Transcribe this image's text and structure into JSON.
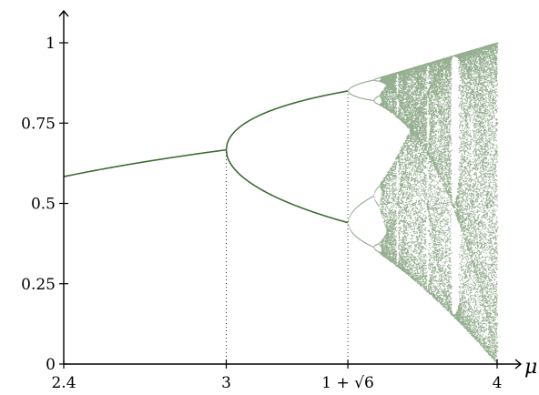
{
  "chart_data": {
    "type": "scatter",
    "title": "",
    "xlabel": "μ",
    "ylabel": "",
    "xlim": [
      2.4,
      4
    ],
    "ylim": [
      0,
      1.06
    ],
    "x_ticks": [
      {
        "value": 2.4,
        "label": "2.4"
      },
      {
        "value": 3,
        "label": "3"
      },
      {
        "value": 3.449,
        "label": "1 + √6"
      },
      {
        "value": 4,
        "label": "4"
      }
    ],
    "y_ticks": [
      {
        "value": 0,
        "label": "0"
      },
      {
        "value": 0.25,
        "label": "0.25"
      },
      {
        "value": 0.5,
        "label": "0.5"
      },
      {
        "value": 0.75,
        "label": "0.75"
      },
      {
        "value": 1,
        "label": "1"
      }
    ],
    "guides": [
      {
        "x": 3,
        "y": 0.6667
      },
      {
        "x": 3.449,
        "y": 0.85
      }
    ],
    "series": [
      {
        "kind": "fixed-point",
        "color": "#3e6b35",
        "x": [
          2.4,
          2.5,
          2.6,
          2.7,
          2.8,
          2.9,
          3.0
        ],
        "y": [
          0.5833,
          0.6,
          0.6154,
          0.6296,
          0.6429,
          0.6552,
          0.6667
        ]
      },
      {
        "kind": "period-2-upper",
        "color": "#3e6b35",
        "x": [
          3.0,
          3.05,
          3.1,
          3.15,
          3.2,
          3.25,
          3.3,
          3.35,
          3.4,
          3.449
        ],
        "y": [
          0.6667,
          0.7383,
          0.7646,
          0.7842,
          0.7995,
          0.812,
          0.8236,
          0.8339,
          0.8422,
          0.85
        ]
      },
      {
        "kind": "period-2-lower",
        "color": "#3e6b35",
        "x": [
          3.0,
          3.05,
          3.1,
          3.15,
          3.2,
          3.25,
          3.3,
          3.35,
          3.4,
          3.449
        ],
        "y": [
          0.6667,
          0.5917,
          0.558,
          0.5311,
          0.513,
          0.4952,
          0.4794,
          0.4647,
          0.452,
          0.44
        ]
      }
    ],
    "chaotic_region": {
      "x_start": 3.5699,
      "x_end": 4,
      "color": "#3e6b35",
      "window": {
        "x": 3.83,
        "period": 3
      }
    },
    "grid": false
  }
}
